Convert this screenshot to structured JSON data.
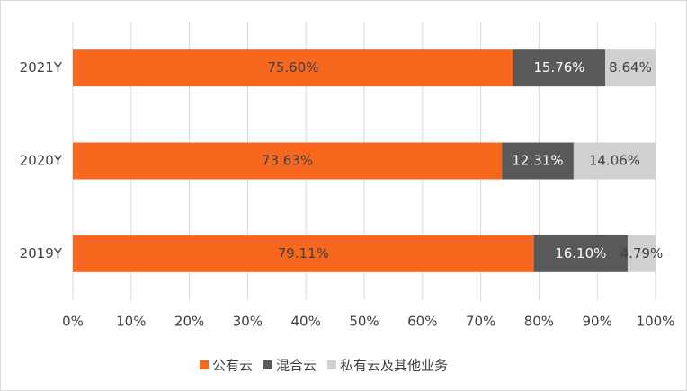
{
  "chart_data": {
    "type": "stacked_barh",
    "categories": [
      "2021Y",
      "2020Y",
      "2019Y"
    ],
    "series": [
      {
        "name": "公有云",
        "color": "#f7671e",
        "values": [
          75.6,
          73.63,
          79.11
        ],
        "value_labels": [
          "75.60%",
          "73.63%",
          "79.11%"
        ]
      },
      {
        "name": "混合云",
        "color": "#595959",
        "values": [
          15.76,
          12.31,
          16.1
        ],
        "value_labels": [
          "15.76%",
          "12.31%",
          "16.10%"
        ]
      },
      {
        "name": "私有云及其他业务",
        "color": "#d0d0d0",
        "values": [
          8.64,
          14.06,
          4.79
        ],
        "value_labels": [
          "8.64%",
          "14.06%",
          "4.79%"
        ]
      }
    ],
    "xlim": [
      0,
      100
    ],
    "xticks": [
      {
        "value": 0,
        "label": "0%"
      },
      {
        "value": 10,
        "label": "10%"
      },
      {
        "value": 20,
        "label": "20%"
      },
      {
        "value": 30,
        "label": "30%"
      },
      {
        "value": 40,
        "label": "40%"
      },
      {
        "value": 50,
        "label": "50%"
      },
      {
        "value": 60,
        "label": "60%"
      },
      {
        "value": 70,
        "label": "70%"
      },
      {
        "value": 80,
        "label": "80%"
      },
      {
        "value": 90,
        "label": "90%"
      },
      {
        "value": 100,
        "label": "100%"
      }
    ],
    "grid": true,
    "legend": "bottom"
  }
}
